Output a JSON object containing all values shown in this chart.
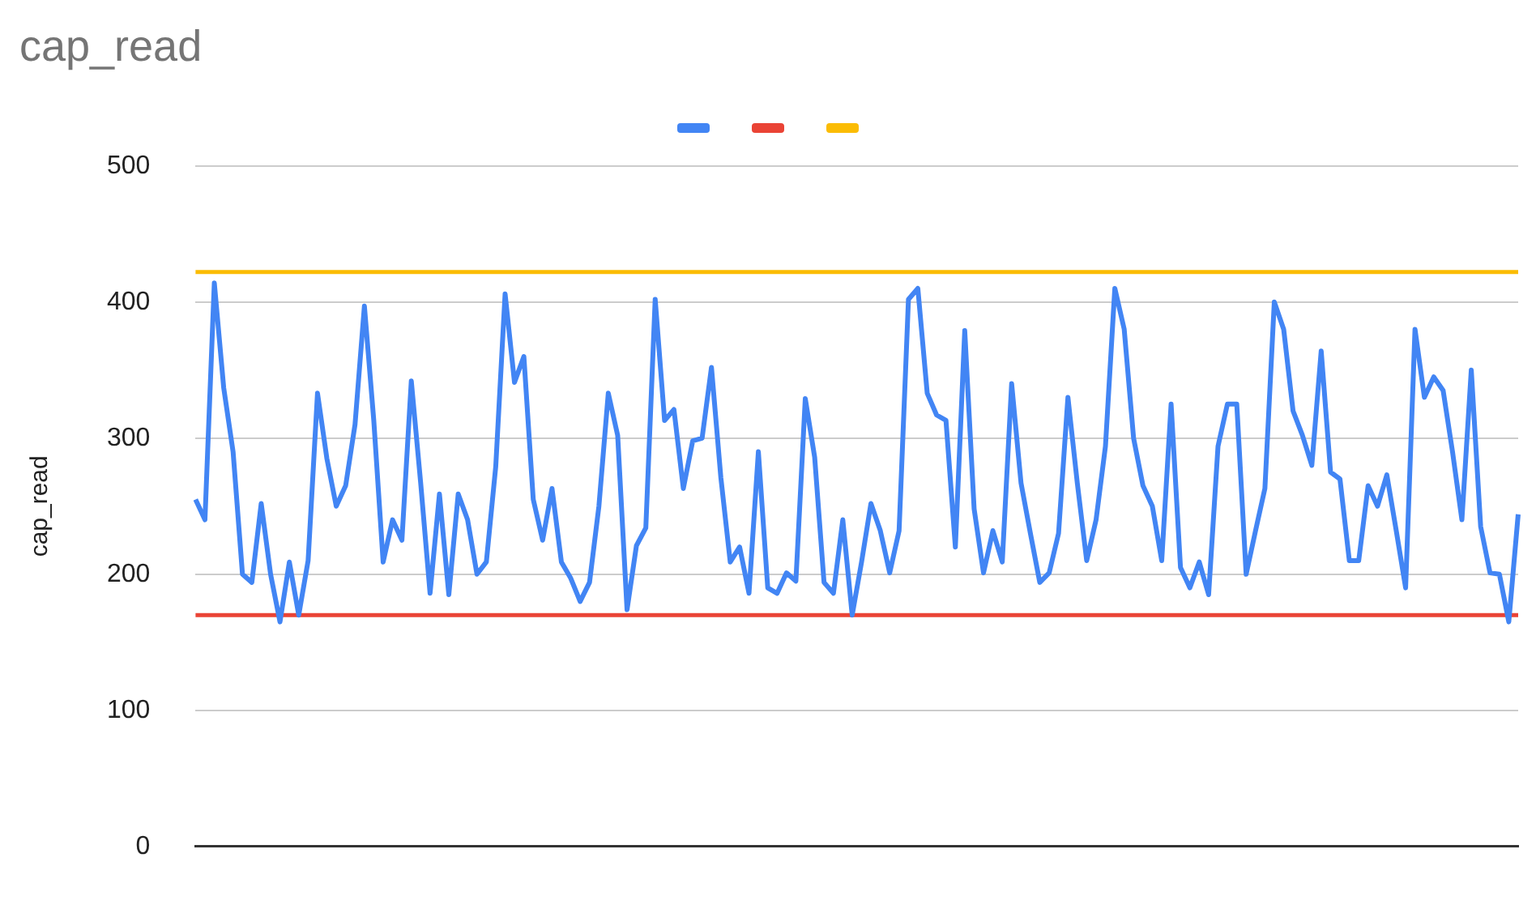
{
  "chart_data": {
    "type": "line",
    "title": "cap_read",
    "ylabel": "cap_read",
    "categories": [
      null,
      null,
      null,
      null,
      null,
      null,
      null,
      null,
      null,
      null,
      null,
      null,
      null,
      null,
      null,
      null,
      null,
      null,
      null,
      null,
      null,
      null,
      null,
      null,
      null,
      null,
      null,
      null,
      null,
      null,
      null,
      null,
      null,
      null,
      null,
      null,
      null,
      null,
      null,
      null,
      null,
      null,
      null,
      null,
      null,
      null,
      null,
      null,
      null,
      null,
      null,
      null,
      null,
      null,
      null,
      null,
      null,
      null,
      null,
      null,
      null,
      null,
      null,
      null,
      null,
      null,
      null,
      null,
      null,
      null,
      null,
      null,
      null,
      null,
      null,
      null,
      null,
      null,
      null,
      null,
      null,
      null,
      null,
      null,
      null,
      null,
      null,
      null,
      null,
      null,
      null,
      null,
      null,
      null,
      null,
      null,
      null,
      null,
      null,
      null,
      null,
      null,
      null,
      null,
      null,
      null,
      null,
      null,
      null,
      null,
      null,
      null,
      null,
      null,
      null,
      null,
      null,
      null,
      null,
      null,
      null,
      null,
      null,
      null,
      null,
      null,
      null,
      null,
      null,
      null,
      null,
      null,
      null,
      null,
      null,
      null,
      null,
      null,
      null,
      null,
      null,
      null
    ],
    "series": [
      {
        "color": "#4285f4",
        "values": [
          255,
          240,
          414,
          337,
          290,
          200,
          194,
          252,
          200,
          165,
          209,
          170,
          210,
          333,
          285,
          250,
          265,
          310,
          397,
          313,
          209,
          240,
          225,
          342,
          267,
          186,
          259,
          185,
          259,
          240,
          200,
          209,
          279,
          406,
          341,
          360,
          255,
          225,
          263,
          209,
          197,
          180,
          194,
          250,
          333,
          302,
          174,
          221,
          234,
          402,
          313,
          321,
          263,
          298,
          300,
          352,
          271,
          209,
          220,
          186,
          290,
          190,
          186,
          201,
          195,
          329,
          286,
          194,
          186,
          240,
          170,
          209,
          252,
          232,
          201,
          232,
          402,
          410,
          333,
          317,
          313,
          220,
          379,
          248,
          201,
          232,
          209,
          340,
          267,
          230,
          194,
          201,
          230,
          330,
          267,
          210,
          240,
          294,
          410,
          380,
          300,
          265,
          250,
          210,
          325,
          205,
          190,
          209,
          185,
          294,
          325,
          325,
          200,
          232,
          263,
          400,
          380,
          320,
          302,
          280,
          364,
          275,
          270,
          210,
          210,
          265,
          250,
          273,
          232,
          190,
          380,
          330,
          345,
          335,
          290,
          240,
          350,
          235,
          201,
          200,
          165,
          244
        ]
      },
      {
        "color": "#ea4335",
        "values": [
          170,
          170,
          170,
          170,
          170,
          170,
          170,
          170,
          170,
          170,
          170,
          170,
          170,
          170,
          170,
          170,
          170,
          170,
          170,
          170,
          170,
          170,
          170,
          170,
          170,
          170,
          170,
          170,
          170,
          170,
          170,
          170,
          170,
          170,
          170,
          170,
          170,
          170,
          170,
          170,
          170,
          170,
          170,
          170,
          170,
          170,
          170,
          170,
          170,
          170,
          170,
          170,
          170,
          170,
          170,
          170,
          170,
          170,
          170,
          170,
          170,
          170,
          170,
          170,
          170,
          170,
          170,
          170,
          170,
          170,
          170,
          170,
          170,
          170,
          170,
          170,
          170,
          170,
          170,
          170,
          170,
          170,
          170,
          170,
          170,
          170,
          170,
          170,
          170,
          170,
          170,
          170,
          170,
          170,
          170,
          170,
          170,
          170,
          170,
          170,
          170,
          170,
          170,
          170,
          170,
          170,
          170,
          170,
          170,
          170,
          170,
          170,
          170,
          170,
          170,
          170,
          170,
          170,
          170,
          170,
          170,
          170,
          170,
          170,
          170,
          170,
          170,
          170,
          170,
          170,
          170,
          170,
          170,
          170,
          170,
          170,
          170,
          170,
          170,
          170,
          170,
          170
        ]
      },
      {
        "color": "#fbbc04",
        "values": [
          422,
          422,
          422,
          422,
          422,
          422,
          422,
          422,
          422,
          422,
          422,
          422,
          422,
          422,
          422,
          422,
          422,
          422,
          422,
          422,
          422,
          422,
          422,
          422,
          422,
          422,
          422,
          422,
          422,
          422,
          422,
          422,
          422,
          422,
          422,
          422,
          422,
          422,
          422,
          422,
          422,
          422,
          422,
          422,
          422,
          422,
          422,
          422,
          422,
          422,
          422,
          422,
          422,
          422,
          422,
          422,
          422,
          422,
          422,
          422,
          422,
          422,
          422,
          422,
          422,
          422,
          422,
          422,
          422,
          422,
          422,
          422,
          422,
          422,
          422,
          422,
          422,
          422,
          422,
          422,
          422,
          422,
          422,
          422,
          422,
          422,
          422,
          422,
          422,
          422,
          422,
          422,
          422,
          422,
          422,
          422,
          422,
          422,
          422,
          422,
          422,
          422,
          422,
          422,
          422,
          422,
          422,
          422,
          422,
          422,
          422,
          422,
          422,
          422,
          422,
          422,
          422,
          422,
          422,
          422,
          422,
          422,
          422,
          422,
          422,
          422,
          422,
          422,
          422,
          422,
          422,
          422,
          422,
          422,
          422,
          422,
          422,
          422,
          422,
          422,
          422,
          422
        ]
      }
    ],
    "ylim": [
      0,
      500
    ],
    "yticks": [
      0,
      100,
      200,
      300,
      400,
      500
    ],
    "grid": "y",
    "tick_labels": "y",
    "marker": "none",
    "line_style": "solid"
  }
}
